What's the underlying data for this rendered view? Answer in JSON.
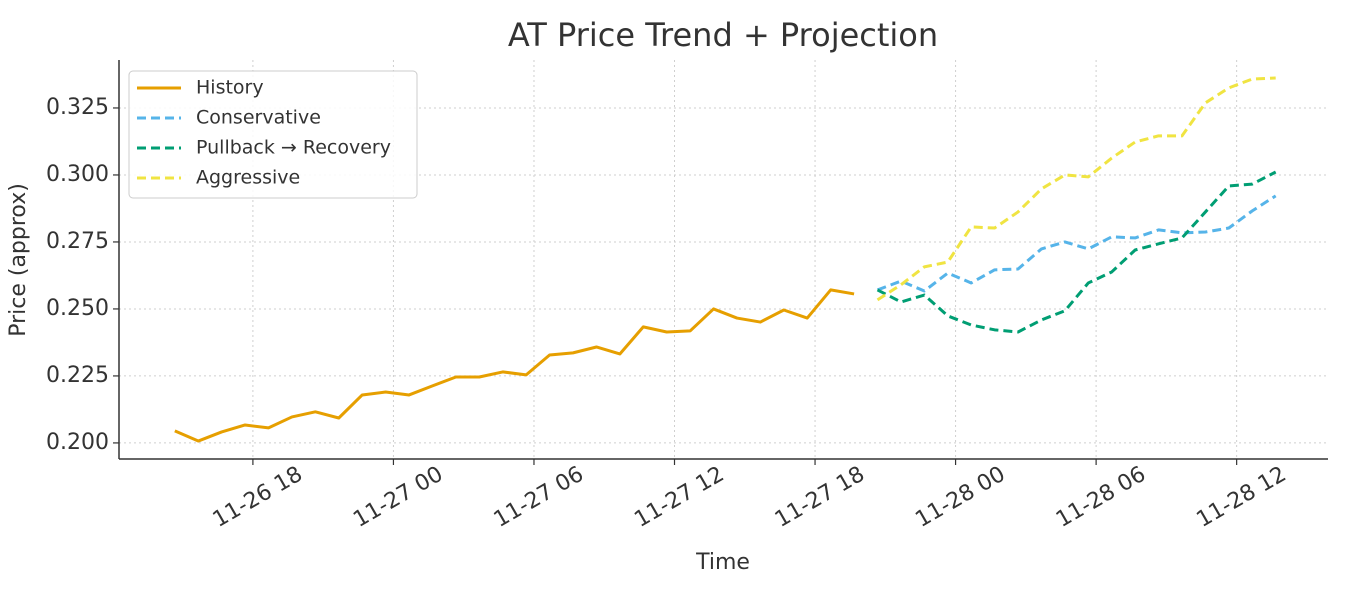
{
  "chart_data": {
    "type": "line",
    "title": "AT Price Trend + Projection",
    "x_label": "Time",
    "y_label": "Price (approx)",
    "xlim": [
      "11-26 12:17",
      "11-28 15:54"
    ],
    "xticks": [
      "11-26 18",
      "11-27 00",
      "11-27 06",
      "11-27 12",
      "11-27 18",
      "11-28 00",
      "11-28 06",
      "11-28 12"
    ],
    "ylim": [
      0.194,
      0.3429
    ],
    "yticks": [
      {
        "value": 0.2,
        "label": "0.200"
      },
      {
        "value": 0.225,
        "label": "0.225"
      },
      {
        "value": 0.25,
        "label": "0.250"
      },
      {
        "value": 0.275,
        "label": "0.275"
      },
      {
        "value": 0.3,
        "label": "0.300"
      },
      {
        "value": 0.325,
        "label": "0.325"
      }
    ],
    "grid": true,
    "legend": "upper left",
    "series": [
      {
        "name": "History",
        "color": "#E69F00",
        "dashed": false,
        "x": [
          "11-26 14:40",
          "11-26 15:40",
          "11-26 16:40",
          "11-26 17:40",
          "11-26 18:40",
          "11-26 19:40",
          "11-26 20:40",
          "11-26 21:40",
          "11-26 22:40",
          "11-26 23:40",
          "11-27 00:40",
          "11-27 01:40",
          "11-27 02:40",
          "11-27 03:40",
          "11-27 04:40",
          "11-27 05:40",
          "11-27 06:40",
          "11-27 07:40",
          "11-27 08:40",
          "11-27 09:40",
          "11-27 10:40",
          "11-27 11:40",
          "11-27 12:40",
          "11-27 13:40",
          "11-27 14:40",
          "11-27 15:40",
          "11-27 16:40",
          "11-27 17:40",
          "11-27 18:40",
          "11-27 19:40"
        ],
        "values": [
          0.2045,
          0.2007,
          0.2041,
          0.2067,
          0.2056,
          0.2097,
          0.2116,
          0.2093,
          0.2179,
          0.219,
          0.2179,
          0.2213,
          0.2246,
          0.2246,
          0.2265,
          0.2254,
          0.2328,
          0.2336,
          0.2358,
          0.2332,
          0.2433,
          0.2414,
          0.2418,
          0.25,
          0.2466,
          0.2451,
          0.2496,
          0.2466,
          0.2571,
          0.2556
        ]
      },
      {
        "name": "Conservative",
        "color": "#56B4E9",
        "dashed": true,
        "x": [
          "11-27 20:40",
          "11-27 21:40",
          "11-27 22:40",
          "11-27 23:40",
          "11-28 00:40",
          "11-28 01:40",
          "11-28 02:40",
          "11-28 03:40",
          "11-28 04:40",
          "11-28 05:40",
          "11-28 06:40",
          "11-28 07:40",
          "11-28 08:40",
          "11-28 09:40",
          "11-28 10:40",
          "11-28 11:40",
          "11-28 12:40",
          "11-28 13:40"
        ],
        "values": [
          0.2571,
          0.2604,
          0.2567,
          0.2634,
          0.2597,
          0.2646,
          0.2649,
          0.2724,
          0.275,
          0.2724,
          0.2769,
          0.2765,
          0.2795,
          0.2784,
          0.2787,
          0.2802,
          0.2866,
          0.2922
        ]
      },
      {
        "name": "Pullback → Recovery",
        "color": "#009E73",
        "dashed": true,
        "x": [
          "11-27 20:40",
          "11-27 21:40",
          "11-27 22:40",
          "11-27 23:40",
          "11-28 00:40",
          "11-28 01:40",
          "11-28 02:40",
          "11-28 03:40",
          "11-28 04:40",
          "11-28 05:40",
          "11-28 06:40",
          "11-28 07:40",
          "11-28 08:40",
          "11-28 09:40",
          "11-28 10:40",
          "11-28 11:40",
          "11-28 12:40",
          "11-28 13:40"
        ],
        "values": [
          0.2571,
          0.2526,
          0.2552,
          0.2474,
          0.244,
          0.2422,
          0.2414,
          0.2459,
          0.2493,
          0.2597,
          0.2638,
          0.272,
          0.2743,
          0.2765,
          0.2862,
          0.2959,
          0.2966,
          0.3011
        ]
      },
      {
        "name": "Aggressive",
        "color": "#F0E442",
        "dashed": true,
        "x": [
          "11-27 20:40",
          "11-27 21:40",
          "11-27 22:40",
          "11-27 23:40",
          "11-28 00:40",
          "11-28 01:40",
          "11-28 02:40",
          "11-28 03:40",
          "11-28 04:40",
          "11-28 05:40",
          "11-28 06:40",
          "11-28 07:40",
          "11-28 08:40",
          "11-28 09:40",
          "11-28 10:40",
          "11-28 11:40",
          "11-28 12:40",
          "11-28 13:40"
        ],
        "values": [
          0.2534,
          0.259,
          0.2657,
          0.2675,
          0.2806,
          0.2802,
          0.2862,
          0.2948,
          0.3,
          0.2993,
          0.3063,
          0.3123,
          0.3146,
          0.3146,
          0.3269,
          0.3325,
          0.3358,
          0.3362
        ]
      }
    ]
  }
}
